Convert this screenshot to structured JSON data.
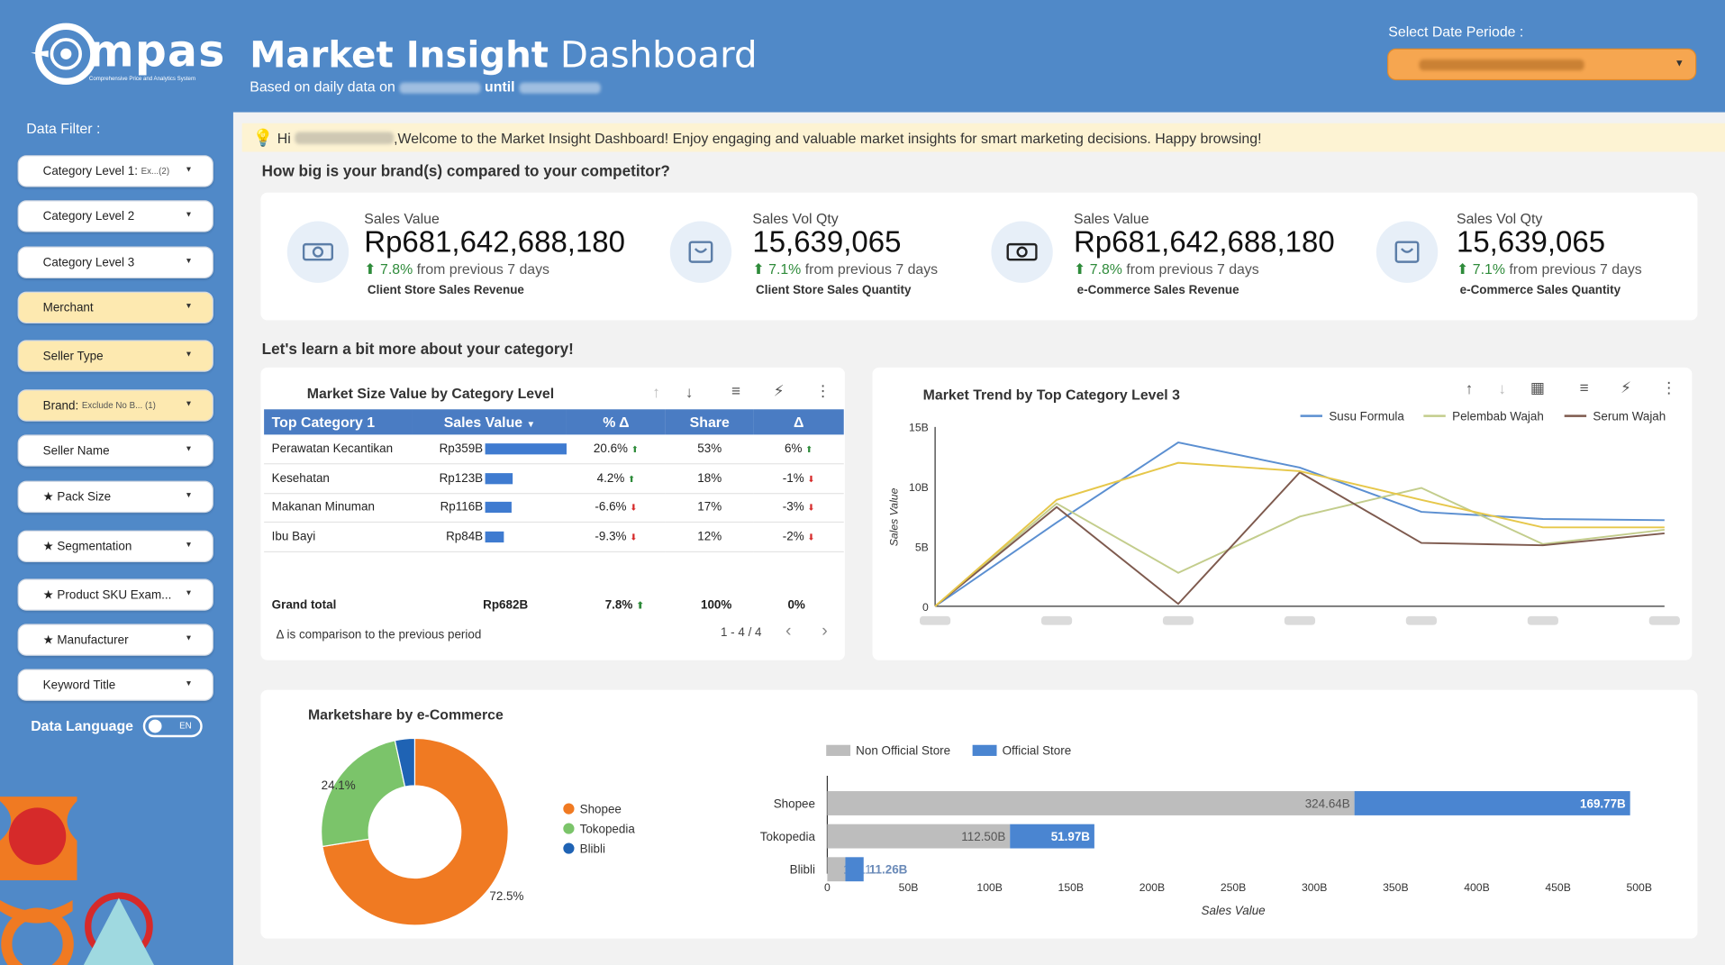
{
  "header": {
    "logo_text": "mpas",
    "logo_tagline": "Comprehensive Price and Analytics System",
    "title_bold": "Market Insight",
    "title_rest": "Dashboard",
    "subtitle_prefix": "Based on daily data on",
    "subtitle_until": "until",
    "date_label": "Select Date Periode :"
  },
  "sidebar": {
    "title": "Data Filter :",
    "filters": [
      {
        "label": "Category Level 1:",
        "extra": "Ex...(2)",
        "highlight": false
      },
      {
        "label": "Category Level 2",
        "extra": "",
        "highlight": false
      },
      {
        "label": "Category Level 3",
        "extra": "",
        "highlight": false
      },
      {
        "label": "Merchant",
        "extra": "",
        "highlight": true
      },
      {
        "label": "Seller Type",
        "extra": "",
        "highlight": true
      },
      {
        "label": "Brand:",
        "extra": "Exclude No B... (1)",
        "highlight": true
      },
      {
        "label": "Seller Name",
        "extra": "",
        "highlight": false
      },
      {
        "label": "★ Pack Size",
        "extra": "",
        "highlight": false
      },
      {
        "label": "★ Segmentation",
        "extra": "",
        "highlight": false
      },
      {
        "label": "★ Product SKU Exam...",
        "extra": "",
        "highlight": false
      },
      {
        "label": "★ Manufacturer",
        "extra": "",
        "highlight": false
      },
      {
        "label": "Keyword Title",
        "extra": "",
        "highlight": false
      }
    ],
    "language_label": "Data Language",
    "language_value": "EN"
  },
  "banner": {
    "greeting": "Hi",
    "message": ",Welcome to the Market Insight Dashboard! Enjoy engaging and valuable market insights for smart marketing decisions. Happy browsing!"
  },
  "sections": {
    "brand_question": "How big is your brand(s) compared to your competitor?",
    "category_intro": "Let's learn a bit more about your category!"
  },
  "kpis": [
    {
      "label": "Sales Value",
      "value": "Rp681,642,688,180",
      "change": "7.8%",
      "change_text": "from previous 7 days",
      "caption": "Client Store Sales Revenue",
      "icon": "money-icon"
    },
    {
      "label": "Sales Vol Qty",
      "value": "15,639,065",
      "change": "7.1%",
      "change_text": "from previous 7 days",
      "caption": "Client Store Sales Quantity",
      "icon": "shopping-bag-icon"
    },
    {
      "label": "Sales Value",
      "value": "Rp681,642,688,180",
      "change": "7.8%",
      "change_text": "from previous 7 days",
      "caption": "e-Commerce Sales Revenue",
      "icon": "money-icon"
    },
    {
      "label": "Sales Vol Qty",
      "value": "15,639,065",
      "change": "7.1%",
      "change_text": "from previous 7 days",
      "caption": "e-Commerce Sales Quantity",
      "icon": "shopping-bag-icon"
    }
  ],
  "category_table": {
    "title": "Market Size Value by Category Level",
    "columns": [
      "Top Category 1",
      "Sales Value",
      "% Δ",
      "Share",
      "Δ"
    ],
    "rows": [
      {
        "name": "Perawatan Kecantikan",
        "sales": "Rp359B",
        "sales_value": 359,
        "pct": "20.6%",
        "pct_dir": "up",
        "share": "53%",
        "delta": "6%",
        "delta_dir": "up"
      },
      {
        "name": "Kesehatan",
        "sales": "Rp123B",
        "sales_value": 123,
        "pct": "4.2%",
        "pct_dir": "up",
        "share": "18%",
        "delta": "-1%",
        "delta_dir": "down"
      },
      {
        "name": "Makanan Minuman",
        "sales": "Rp116B",
        "sales_value": 116,
        "pct": "-6.6%",
        "pct_dir": "down",
        "share": "17%",
        "delta": "-3%",
        "delta_dir": "down"
      },
      {
        "name": "Ibu Bayi",
        "sales": "Rp84B",
        "sales_value": 84,
        "pct": "-9.3%",
        "pct_dir": "down",
        "share": "12%",
        "delta": "-2%",
        "delta_dir": "down"
      }
    ],
    "grand_total": {
      "label": "Grand total",
      "sales": "Rp682B",
      "pct": "7.8%",
      "share": "100%",
      "delta": "0%"
    },
    "note": "Δ is comparison to the previous period",
    "pager": "1 - 4 / 4"
  },
  "chart_data": [
    {
      "type": "line",
      "title": "Market  Trend by Top Category Level 3",
      "ylabel": "Sales Value",
      "ylim": [
        0,
        15
      ],
      "yticks": [
        "0",
        "5B",
        "10B",
        "15B"
      ],
      "x_count": 7,
      "legend_position": "top-right",
      "series": [
        {
          "name": "Susu Formula",
          "color": "#5b8fd1",
          "values": [
            0,
            7,
            13.7,
            11.6,
            7.9,
            7.3,
            7.2
          ]
        },
        {
          "name": "Pelembab Wajah",
          "color": "#c3cd8c",
          "values": [
            0,
            8.6,
            2.8,
            7.5,
            9.9,
            5.2,
            6.4
          ]
        },
        {
          "name": "Serum Wajah",
          "color": "#7e5a4e",
          "values": [
            0,
            8.3,
            0.2,
            11.2,
            5.3,
            5.1,
            6.1
          ]
        },
        {
          "name": "",
          "color": "#e6c74a",
          "values": [
            0,
            8.9,
            12.0,
            11.3,
            8.9,
            6.6,
            6.6
          ]
        }
      ]
    },
    {
      "type": "pie",
      "title": "Marketshare by e-Commerce",
      "legend_position": "right",
      "series": [
        {
          "name": "Shopee",
          "value": 72.5,
          "label": "72.5%",
          "color": "#f07a22"
        },
        {
          "name": "Tokopedia",
          "value": 24.1,
          "label": "24.1%",
          "color": "#7bc46a"
        },
        {
          "name": "Blibli",
          "value": 3.4,
          "label": "",
          "color": "#1f63b4"
        }
      ]
    },
    {
      "type": "bar",
      "orientation": "horizontal",
      "stacked": true,
      "categories": [
        "Shopee",
        "Tokopedia",
        "Blibli"
      ],
      "xlabel": "Sales Value",
      "xlim": [
        0,
        500
      ],
      "xticks": [
        "0",
        "50B",
        "100B",
        "150B",
        "200B",
        "250B",
        "300B",
        "350B",
        "400B",
        "450B",
        "500B"
      ],
      "legend_position": "top-left",
      "series": [
        {
          "name": "Non Official Store",
          "color": "#bdbdbd",
          "values": [
            324.64,
            112.5,
            11.11
          ],
          "labels": [
            "324.64B",
            "112.50B",
            "11.11"
          ]
        },
        {
          "name": "Official Store",
          "color": "#4a85d1",
          "values": [
            169.77,
            51.97,
            11.26
          ],
          "labels": [
            "169.77B",
            "51.97B",
            "11.26B"
          ]
        }
      ]
    }
  ]
}
